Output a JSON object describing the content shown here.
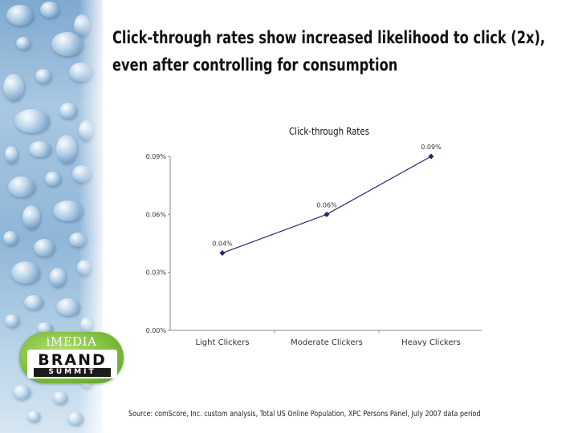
{
  "title": {
    "line1": "Click-through rates show increased likelihood to click (2x),",
    "line2": "even after controlling for consumption"
  },
  "logo": {
    "top_text": "iMEDIA",
    "brand_text": "BRAND",
    "summit_text": "SUMMIT"
  },
  "source": "Source:  comScore, Inc. custom analysis, Total US Online Population, XPC Persons Panel, July 2007 data period",
  "colors": {
    "series_line": "#1f2a6b",
    "axis": "#888888",
    "logo_green": "#7fbf3f"
  },
  "chart_data": {
    "type": "line",
    "title": "Click-through Rates",
    "xlabel": "",
    "ylabel": "",
    "categories": [
      "Light Clickers",
      "Moderate Clickers",
      "Heavy Clickers"
    ],
    "series": [
      {
        "values": [
          0.04,
          0.06,
          0.09
        ],
        "data_labels": [
          "0.04%",
          "0.06%",
          "0.09%"
        ]
      }
    ],
    "y_ticks": [
      "0.00%",
      "0.03%",
      "0.06%",
      "0.09%"
    ],
    "ylim": [
      0,
      0.09
    ],
    "grid": false,
    "legend": "none"
  }
}
